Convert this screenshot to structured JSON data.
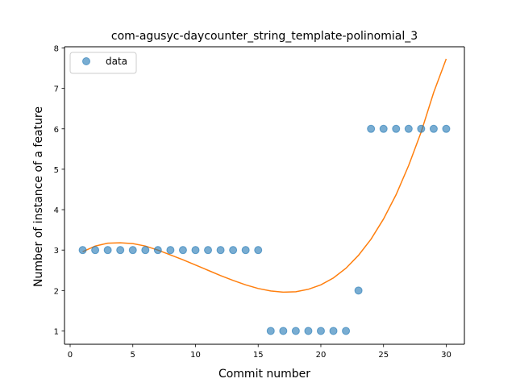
{
  "chart_data": {
    "type": "scatter",
    "title": "com-agusyc-daycounter_string_template-polinomial_3",
    "xlabel": "Commit number",
    "ylabel": "Number of instance of a feature",
    "xlim": [
      -0.45,
      31.45
    ],
    "ylim": [
      0.67,
      8.03
    ],
    "xticks": [
      0,
      5,
      10,
      15,
      20,
      25,
      30
    ],
    "yticks": [
      1,
      2,
      3,
      4,
      5,
      6,
      7,
      8
    ],
    "grid": false,
    "legend_position": "top-left",
    "series": [
      {
        "name": "data",
        "kind": "scatter",
        "color": "#1f77b4",
        "x": [
          1,
          2,
          3,
          4,
          5,
          6,
          7,
          8,
          9,
          10,
          11,
          12,
          13,
          14,
          15,
          16,
          17,
          18,
          19,
          20,
          21,
          22,
          23,
          24,
          25,
          26,
          27,
          28,
          29,
          30
        ],
        "y": [
          3,
          3,
          3,
          3,
          3,
          3,
          3,
          3,
          3,
          3,
          3,
          3,
          3,
          3,
          3,
          1,
          1,
          1,
          1,
          1,
          1,
          1,
          2,
          6,
          6,
          6,
          6,
          6,
          6,
          6
        ]
      },
      {
        "kind": "line",
        "color": "#ff7f0e",
        "x": [
          1,
          2,
          3,
          4,
          5,
          6,
          7,
          8,
          9,
          10,
          11,
          12,
          13,
          14,
          15,
          16,
          17,
          18,
          19,
          20,
          21,
          22,
          23,
          24,
          25,
          26,
          27,
          28,
          29,
          30
        ],
        "y": [
          2.96,
          3.1,
          3.17,
          3.18,
          3.16,
          3.1,
          3.0,
          2.88,
          2.76,
          2.63,
          2.5,
          2.37,
          2.25,
          2.14,
          2.05,
          1.99,
          1.96,
          1.97,
          2.03,
          2.14,
          2.31,
          2.55,
          2.87,
          3.27,
          3.77,
          4.37,
          5.09,
          5.92,
          6.9,
          7.73
        ]
      }
    ]
  }
}
